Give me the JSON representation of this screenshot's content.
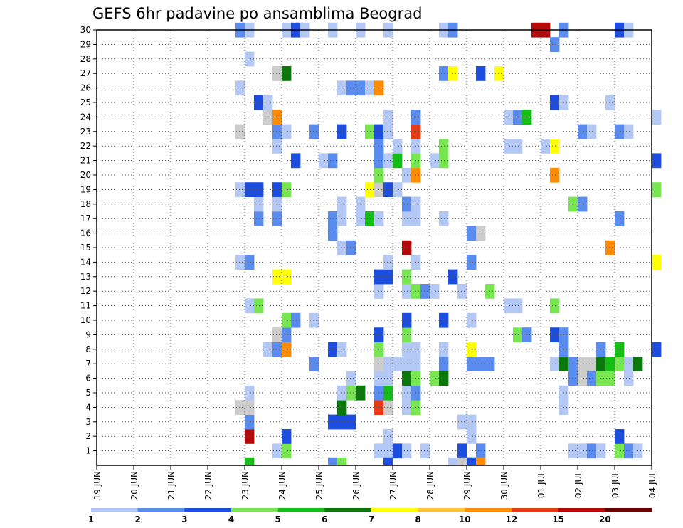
{
  "chart_data": {
    "type": "heatmap",
    "title": "GEFS 6hr padavine po ansamblima Beograd",
    "xlabel": "",
    "ylabel": "",
    "x_ticks": [
      "19 JUN",
      "20 JUN",
      "21 JUN",
      "22 JUN",
      "23 JUN",
      "24 JUN",
      "25 JUN",
      "26 JUN",
      "27 JUN",
      "28 JUN",
      "29 JUN",
      "30 JUN",
      "01 JUL",
      "02 JUL",
      "03 JUL",
      "04 JUL"
    ],
    "y_ticks": [
      1,
      2,
      3,
      4,
      5,
      6,
      7,
      8,
      9,
      10,
      11,
      12,
      13,
      14,
      15,
      16,
      17,
      18,
      19,
      20,
      21,
      22,
      23,
      24,
      25,
      26,
      27,
      28,
      29,
      30
    ],
    "grid": true,
    "color_scale": {
      "labels": [
        "1",
        "2",
        "3",
        "4",
        "5",
        "6",
        "7",
        "8",
        "10",
        "12",
        "15",
        "20"
      ],
      "colors": [
        "#b4c8f5",
        "#5a8cf0",
        "#1e4ee0",
        "#78e650",
        "#14be14",
        "#0a780a",
        "#ffff00",
        "#ffbe3c",
        "#ff8c00",
        "#e63c14",
        "#b40a0a",
        "#6e0000"
      ]
    },
    "cells": [
      [
        26.5,
        1,
        1
      ],
      [
        26.75,
        1,
        1
      ],
      [
        27,
        1,
        3
      ],
      [
        27.25,
        1,
        1
      ],
      [
        27.75,
        1,
        1
      ],
      [
        28.75,
        1,
        3
      ],
      [
        29.25,
        1,
        2
      ],
      [
        31.75,
        1,
        1
      ],
      [
        32,
        1,
        1
      ],
      [
        32.25,
        1,
        2
      ],
      [
        32.5,
        1,
        1
      ],
      [
        33,
        1,
        4
      ],
      [
        33.25,
        1,
        2
      ],
      [
        33.5,
        1,
        1
      ],
      [
        23.75,
        1,
        1
      ],
      [
        24,
        1,
        4
      ],
      [
        24,
        2,
        3
      ],
      [
        26.75,
        2,
        1
      ],
      [
        29,
        2,
        1
      ],
      [
        33,
        2,
        3
      ],
      [
        23,
        2,
        11
      ],
      [
        23,
        3,
        2
      ],
      [
        25.25,
        3,
        3
      ],
      [
        25.5,
        3,
        3
      ],
      [
        25.75,
        3,
        3
      ],
      [
        28.75,
        3,
        1
      ],
      [
        29,
        3,
        1
      ],
      [
        22.75,
        4,
        14
      ],
      [
        23,
        4,
        14
      ],
      [
        25.5,
        4,
        6
      ],
      [
        26.5,
        4,
        10
      ],
      [
        26.75,
        4,
        15
      ],
      [
        27.25,
        4,
        1
      ],
      [
        27.5,
        4,
        4
      ],
      [
        31.5,
        4,
        1
      ],
      [
        23,
        5,
        1
      ],
      [
        25.5,
        5,
        1
      ],
      [
        25.75,
        5,
        4
      ],
      [
        26,
        5,
        6
      ],
      [
        26.5,
        5,
        2
      ],
      [
        26.75,
        5,
        5
      ],
      [
        27.25,
        5,
        1
      ],
      [
        27.5,
        5,
        2
      ],
      [
        31.5,
        5,
        1
      ],
      [
        25.75,
        6,
        1
      ],
      [
        26.5,
        6,
        1
      ],
      [
        26.75,
        6,
        1
      ],
      [
        27.25,
        6,
        6
      ],
      [
        27.5,
        6,
        4
      ],
      [
        28,
        6,
        4
      ],
      [
        28.25,
        6,
        6
      ],
      [
        31.75,
        6,
        2
      ],
      [
        32,
        6,
        14
      ],
      [
        32.25,
        6,
        2
      ],
      [
        32.5,
        6,
        4
      ],
      [
        32.75,
        6,
        4
      ],
      [
        33.25,
        6,
        1
      ],
      [
        24.75,
        7,
        2
      ],
      [
        24.75,
        7,
        2
      ],
      [
        26.5,
        7,
        15
      ],
      [
        26.75,
        7,
        1
      ],
      [
        27,
        7,
        1
      ],
      [
        27.25,
        7,
        1
      ],
      [
        27.5,
        7,
        1
      ],
      [
        28.25,
        7,
        2
      ],
      [
        29,
        7,
        2
      ],
      [
        29.25,
        7,
        2
      ],
      [
        29.5,
        7,
        2
      ],
      [
        31.25,
        7,
        1
      ],
      [
        31.5,
        7,
        6
      ],
      [
        31.75,
        7,
        2
      ],
      [
        32,
        7,
        15
      ],
      [
        32.25,
        7,
        15
      ],
      [
        32.5,
        7,
        6
      ],
      [
        32.75,
        7,
        5
      ],
      [
        33,
        7,
        4
      ],
      [
        33.25,
        7,
        1
      ],
      [
        33.5,
        7,
        6
      ],
      [
        23.5,
        8,
        1
      ],
      [
        23.75,
        8,
        2
      ],
      [
        24,
        8,
        9
      ],
      [
        25.25,
        8,
        3
      ],
      [
        25.5,
        8,
        1
      ],
      [
        26.5,
        8,
        4
      ],
      [
        27.25,
        8,
        1
      ],
      [
        27.5,
        8,
        1
      ],
      [
        28.25,
        8,
        1
      ],
      [
        29,
        8,
        7
      ],
      [
        31.5,
        8,
        2
      ],
      [
        32.5,
        8,
        2
      ],
      [
        33,
        8,
        5
      ],
      [
        34,
        8,
        3
      ],
      [
        23.75,
        9,
        16
      ],
      [
        24,
        9,
        2
      ],
      [
        26.5,
        9,
        3
      ],
      [
        27.25,
        9,
        4
      ],
      [
        30.25,
        9,
        4
      ],
      [
        30.5,
        9,
        2
      ],
      [
        31.25,
        9,
        3
      ],
      [
        31.5,
        9,
        2
      ],
      [
        24,
        10,
        4
      ],
      [
        24.25,
        10,
        2
      ],
      [
        24.75,
        10,
        1
      ],
      [
        27.25,
        10,
        3
      ],
      [
        28.25,
        10,
        3
      ],
      [
        29,
        10,
        1
      ],
      [
        23,
        11,
        1
      ],
      [
        23.25,
        11,
        4
      ],
      [
        30,
        11,
        1
      ],
      [
        30.25,
        11,
        1
      ],
      [
        31.25,
        11,
        4
      ],
      [
        26.5,
        12,
        1
      ],
      [
        27.25,
        12,
        1
      ],
      [
        27.5,
        12,
        4
      ],
      [
        27.75,
        12,
        2
      ],
      [
        28,
        12,
        1
      ],
      [
        28.75,
        12,
        1
      ],
      [
        29.5,
        12,
        4
      ],
      [
        23.75,
        13,
        7
      ],
      [
        24,
        13,
        7
      ],
      [
        26.5,
        13,
        3
      ],
      [
        26.75,
        13,
        3
      ],
      [
        27.25,
        13,
        4
      ],
      [
        28.5,
        13,
        3
      ],
      [
        22.75,
        14,
        1
      ],
      [
        23,
        14,
        2
      ],
      [
        26.75,
        14,
        1
      ],
      [
        27.5,
        14,
        1
      ],
      [
        29,
        14,
        2
      ],
      [
        34,
        14,
        7
      ],
      [
        25.5,
        15,
        1
      ],
      [
        25.75,
        15,
        2
      ],
      [
        27.25,
        15,
        11
      ],
      [
        32.75,
        15,
        9
      ],
      [
        25.25,
        16,
        2
      ],
      [
        29,
        16,
        2
      ],
      [
        29.25,
        16,
        16
      ],
      [
        23.25,
        17,
        2
      ],
      [
        23.75,
        17,
        2
      ],
      [
        25.25,
        17,
        2
      ],
      [
        25.5,
        17,
        1
      ],
      [
        26,
        17,
        1
      ],
      [
        26.25,
        17,
        5
      ],
      [
        26.5,
        17,
        1
      ],
      [
        27.25,
        17,
        1
      ],
      [
        27.5,
        17,
        1
      ],
      [
        28.25,
        17,
        1
      ],
      [
        33,
        17,
        2
      ],
      [
        23.25,
        18,
        1
      ],
      [
        23.75,
        18,
        1
      ],
      [
        25.5,
        18,
        1
      ],
      [
        26,
        18,
        1
      ],
      [
        27.25,
        18,
        2
      ],
      [
        27.5,
        18,
        1
      ],
      [
        31.75,
        18,
        4
      ],
      [
        32,
        18,
        2
      ],
      [
        22.75,
        19,
        1
      ],
      [
        23,
        19,
        3
      ],
      [
        23.25,
        19,
        3
      ],
      [
        23.75,
        19,
        3
      ],
      [
        24,
        19,
        4
      ],
      [
        26.25,
        19,
        7
      ],
      [
        26.5,
        19,
        16
      ],
      [
        26.75,
        19,
        3
      ],
      [
        27,
        19,
        1
      ],
      [
        34,
        19,
        4
      ],
      [
        26.5,
        20,
        4
      ],
      [
        27.25,
        20,
        1
      ],
      [
        27.5,
        20,
        9
      ],
      [
        31.25,
        20,
        9
      ],
      [
        24.25,
        21,
        3
      ],
      [
        25,
        21,
        1
      ],
      [
        25.25,
        21,
        2
      ],
      [
        26.5,
        21,
        2
      ],
      [
        26.75,
        21,
        1
      ],
      [
        27,
        21,
        5
      ],
      [
        27.5,
        21,
        4
      ],
      [
        28,
        21,
        1
      ],
      [
        28.25,
        21,
        4
      ],
      [
        34,
        21,
        3
      ],
      [
        23.75,
        22,
        1
      ],
      [
        26.5,
        22,
        2
      ],
      [
        27,
        22,
        1
      ],
      [
        27.5,
        22,
        1
      ],
      [
        28.25,
        22,
        4
      ],
      [
        30,
        22,
        1
      ],
      [
        30.25,
        22,
        1
      ],
      [
        31,
        22,
        1
      ],
      [
        31.25,
        22,
        7
      ],
      [
        22.75,
        23,
        16
      ],
      [
        23.75,
        23,
        2
      ],
      [
        24,
        23,
        1
      ],
      [
        24.75,
        23,
        2
      ],
      [
        25.5,
        23,
        3
      ],
      [
        26.25,
        23,
        4
      ],
      [
        26.5,
        23,
        3
      ],
      [
        26.75,
        23,
        1
      ],
      [
        27.5,
        23,
        10
      ],
      [
        32,
        23,
        2
      ],
      [
        32.25,
        23,
        1
      ],
      [
        33,
        23,
        2
      ],
      [
        33.25,
        23,
        1
      ],
      [
        23.5,
        24,
        13
      ],
      [
        23.75,
        24,
        9
      ],
      [
        26.75,
        24,
        1
      ],
      [
        27.5,
        24,
        2
      ],
      [
        30,
        24,
        1
      ],
      [
        30.25,
        24,
        2
      ],
      [
        30.5,
        24,
        5
      ],
      [
        34,
        24,
        1
      ],
      [
        23.25,
        25,
        3
      ],
      [
        23.5,
        25,
        1
      ],
      [
        31.25,
        25,
        3
      ],
      [
        31.5,
        25,
        1
      ],
      [
        32.75,
        25,
        1
      ],
      [
        22.75,
        26,
        1
      ],
      [
        25.5,
        26,
        1
      ],
      [
        25.75,
        26,
        2
      ],
      [
        26,
        26,
        2
      ],
      [
        26.25,
        26,
        1
      ],
      [
        26.5,
        26,
        9
      ],
      [
        23.75,
        27,
        16
      ],
      [
        24,
        27,
        6
      ],
      [
        28.25,
        27,
        2
      ],
      [
        28.5,
        27,
        7
      ],
      [
        29.25,
        27,
        3
      ],
      [
        29.75,
        27,
        7
      ],
      [
        23,
        28,
        1
      ],
      [
        31.25,
        29,
        2
      ],
      [
        22.75,
        30,
        2
      ],
      [
        23,
        30,
        1
      ],
      [
        24,
        30,
        1
      ],
      [
        24.25,
        30,
        3
      ],
      [
        24.5,
        30,
        1
      ],
      [
        25.25,
        30,
        1
      ],
      [
        26,
        30,
        1
      ],
      [
        26.75,
        30,
        1
      ],
      [
        28.25,
        30,
        1
      ],
      [
        28.5,
        30,
        2
      ],
      [
        30.75,
        30,
        11
      ],
      [
        31,
        30,
        11
      ],
      [
        31.5,
        30,
        2
      ],
      [
        33,
        30,
        3
      ],
      [
        33.25,
        30,
        1
      ],
      [
        23,
        0,
        5
      ],
      [
        25.25,
        0,
        2
      ],
      [
        25.5,
        0,
        4
      ],
      [
        26.75,
        0,
        3
      ],
      [
        28.5,
        0,
        1
      ],
      [
        28.75,
        0,
        15
      ],
      [
        29,
        0,
        6
      ],
      [
        29,
        0,
        3
      ],
      [
        29.25,
        0,
        9
      ]
    ]
  }
}
